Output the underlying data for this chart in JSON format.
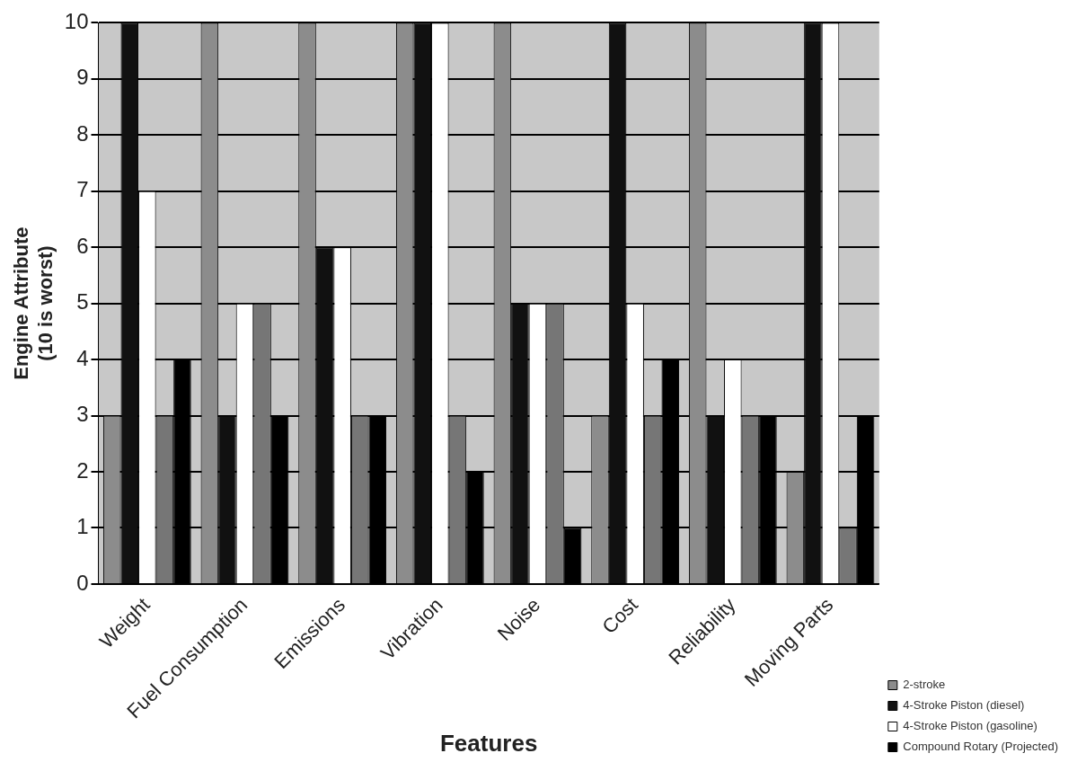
{
  "chart_data": {
    "type": "bar",
    "xlabel": "Features",
    "ylabel": "Engine Attribute\n(10 is worst)",
    "categories": [
      "Weight",
      "Fuel Consumption",
      "Emissions",
      "Vibration",
      "Noise",
      "Cost",
      "Reliability",
      "Moving Parts"
    ],
    "series": [
      {
        "name": "2-stroke",
        "color": "#8c8c8c",
        "values": [
          3,
          10,
          10,
          10,
          10,
          3,
          10,
          2
        ]
      },
      {
        "name": "4-Stroke Piston (diesel)",
        "color": "#111111",
        "values": [
          10,
          3,
          6,
          10,
          5,
          10,
          3,
          10
        ]
      },
      {
        "name": "4-Stroke Piston (gasoline)",
        "color": "#ffffff",
        "values": [
          7,
          5,
          6,
          10,
          5,
          5,
          4,
          10
        ]
      },
      {
        "color": "#767676",
        "values": [
          3,
          5,
          3,
          3,
          5,
          3,
          3,
          1
        ]
      },
      {
        "name": "Compound Rotary (Projected)",
        "color": "#000000",
        "values": [
          4,
          3,
          3,
          2,
          1,
          4,
          3,
          3
        ]
      }
    ],
    "ylim": [
      0,
      10
    ],
    "yticks": [
      0,
      1,
      2,
      3,
      4,
      5,
      6,
      7,
      8,
      9,
      10
    ],
    "grid": "y",
    "legend": "bottom right"
  }
}
